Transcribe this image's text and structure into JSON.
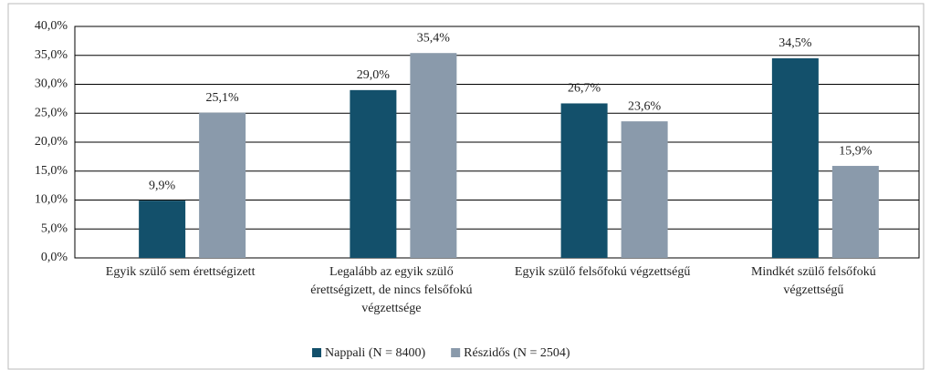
{
  "chart_data": {
    "type": "bar",
    "categories": [
      "Egyik szülő sem érettségizett",
      "Legalább az egyik szülő érettségizett, de nincs felsőfokú végzettsége",
      "Egyik szülő felsőfokú végzettségű",
      "Mindkét szülő felsőfokú végzettségű"
    ],
    "series": [
      {
        "name": "Nappali (N = 8400)",
        "color": "#13506b",
        "values": [
          9.9,
          29.0,
          26.7,
          34.5
        ],
        "value_labels": [
          "9,9%",
          "29,0%",
          "26,7%",
          "34,5%"
        ]
      },
      {
        "name": "Részidős (N = 2504)",
        "color": "#8a9aab",
        "values": [
          25.1,
          35.4,
          23.6,
          15.9
        ],
        "value_labels": [
          "25,1%",
          "35,4%",
          "23,6%",
          "15,9%"
        ]
      }
    ],
    "ylim": [
      0,
      40
    ],
    "yticks": [
      {
        "value": 0,
        "label": "0,0%"
      },
      {
        "value": 5,
        "label": "5,0%"
      },
      {
        "value": 10,
        "label": "10,0%"
      },
      {
        "value": 15,
        "label": "15,0%"
      },
      {
        "value": 20,
        "label": "20,0%"
      },
      {
        "value": 25,
        "label": "25,0%"
      },
      {
        "value": 30,
        "label": "30,0%"
      },
      {
        "value": 35,
        "label": "35,0%"
      },
      {
        "value": 40,
        "label": "40,0%"
      }
    ],
    "grid": true,
    "legend": "bottom"
  }
}
